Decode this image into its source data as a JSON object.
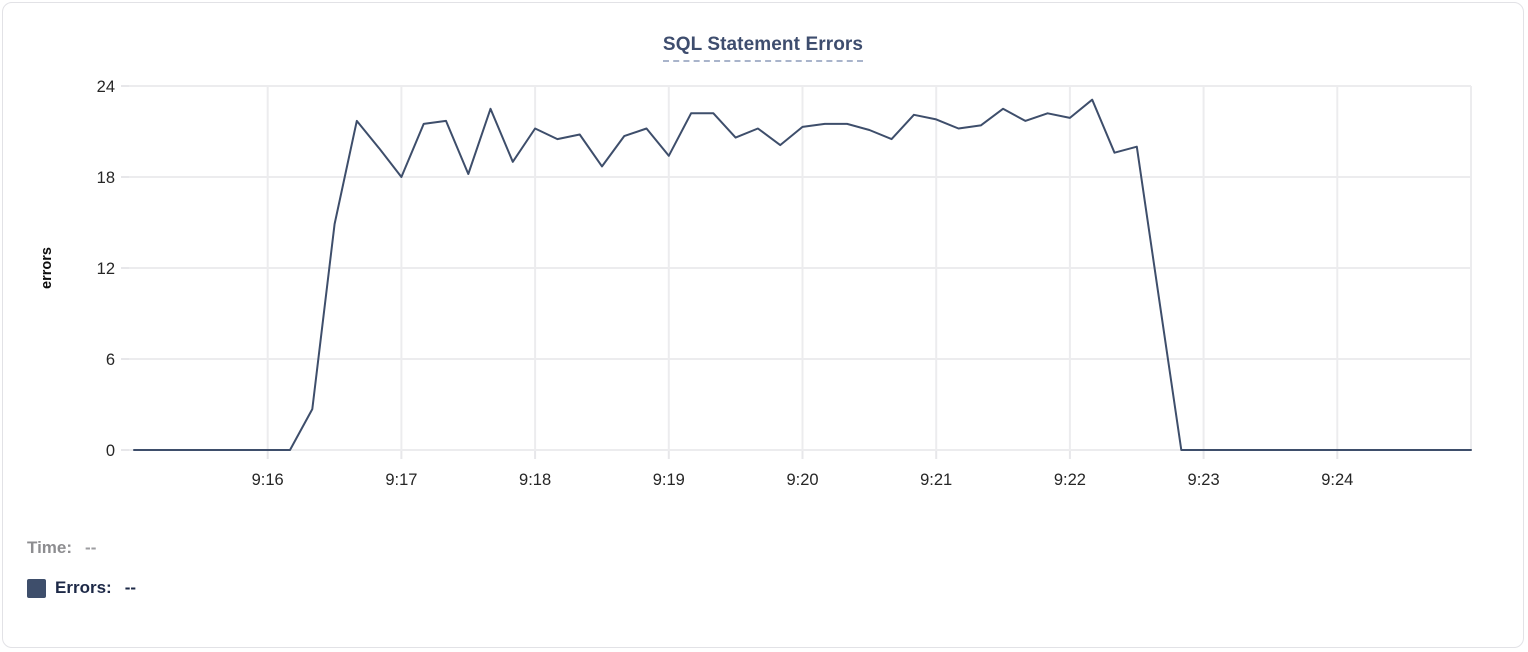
{
  "card": {
    "background": "#ffffff",
    "border_color": "#e2e2e6"
  },
  "chart": {
    "title": "SQL Statement Errors",
    "title_color": "#3e4d6e",
    "title_underline_color": "#a9b4cb"
  },
  "chart_data": {
    "type": "line",
    "title": "SQL Statement Errors",
    "xlabel": "",
    "ylabel": "errors",
    "ylim": [
      0,
      24
    ],
    "y_ticks": [
      0,
      6,
      12,
      18,
      24
    ],
    "x_start": "9:15:00",
    "x_end": "9:25:00",
    "x_tick_labels": [
      "9:16",
      "9:17",
      "9:18",
      "9:19",
      "9:20",
      "9:21",
      "9:22",
      "9:23",
      "9:24"
    ],
    "grid": true,
    "legend_position": "none",
    "series": [
      {
        "name": "Errors",
        "color": "#3e4e6b",
        "sample_interval_seconds": 10,
        "times": [
          "9:15:00",
          "9:15:10",
          "9:15:20",
          "9:15:30",
          "9:15:40",
          "9:15:50",
          "9:16:00",
          "9:16:10",
          "9:16:20",
          "9:16:30",
          "9:16:40",
          "9:16:50",
          "9:17:00",
          "9:17:10",
          "9:17:20",
          "9:17:30",
          "9:17:40",
          "9:17:50",
          "9:18:00",
          "9:18:10",
          "9:18:20",
          "9:18:30",
          "9:18:40",
          "9:18:50",
          "9:19:00",
          "9:19:10",
          "9:19:20",
          "9:19:30",
          "9:19:40",
          "9:19:50",
          "9:20:00",
          "9:20:10",
          "9:20:20",
          "9:20:30",
          "9:20:40",
          "9:20:50",
          "9:21:00",
          "9:21:10",
          "9:21:20",
          "9:21:30",
          "9:21:40",
          "9:21:50",
          "9:22:00",
          "9:22:10",
          "9:22:20",
          "9:22:30",
          "9:22:40",
          "9:22:50",
          "9:23:00",
          "9:23:10",
          "9:23:20",
          "9:23:30",
          "9:23:40",
          "9:23:50",
          "9:24:00",
          "9:24:10",
          "9:24:20",
          "9:24:30",
          "9:24:40",
          "9:24:50",
          "9:25:00"
        ],
        "values": [
          0,
          0,
          0,
          0,
          0,
          0,
          0,
          0,
          2.7,
          14.9,
          21.7,
          19.9,
          18,
          21.5,
          21.7,
          18.2,
          22.5,
          19,
          21.2,
          20.5,
          20.8,
          18.7,
          20.7,
          21.2,
          19.4,
          22.2,
          22.2,
          20.6,
          21.2,
          20.1,
          21.3,
          21.5,
          21.5,
          21.1,
          20.5,
          22.1,
          21.8,
          21.2,
          21.4,
          22.5,
          21.7,
          22.2,
          21.9,
          23.1,
          19.6,
          20,
          10,
          0,
          0,
          0,
          0,
          0,
          0,
          0,
          0,
          0,
          0,
          0,
          0,
          0,
          0
        ]
      }
    ]
  },
  "tooltip": {
    "time_label": "Time:",
    "time_value": "--",
    "errors_label": "Errors:",
    "errors_value": "--",
    "swatch_color": "#3e4e6b"
  }
}
